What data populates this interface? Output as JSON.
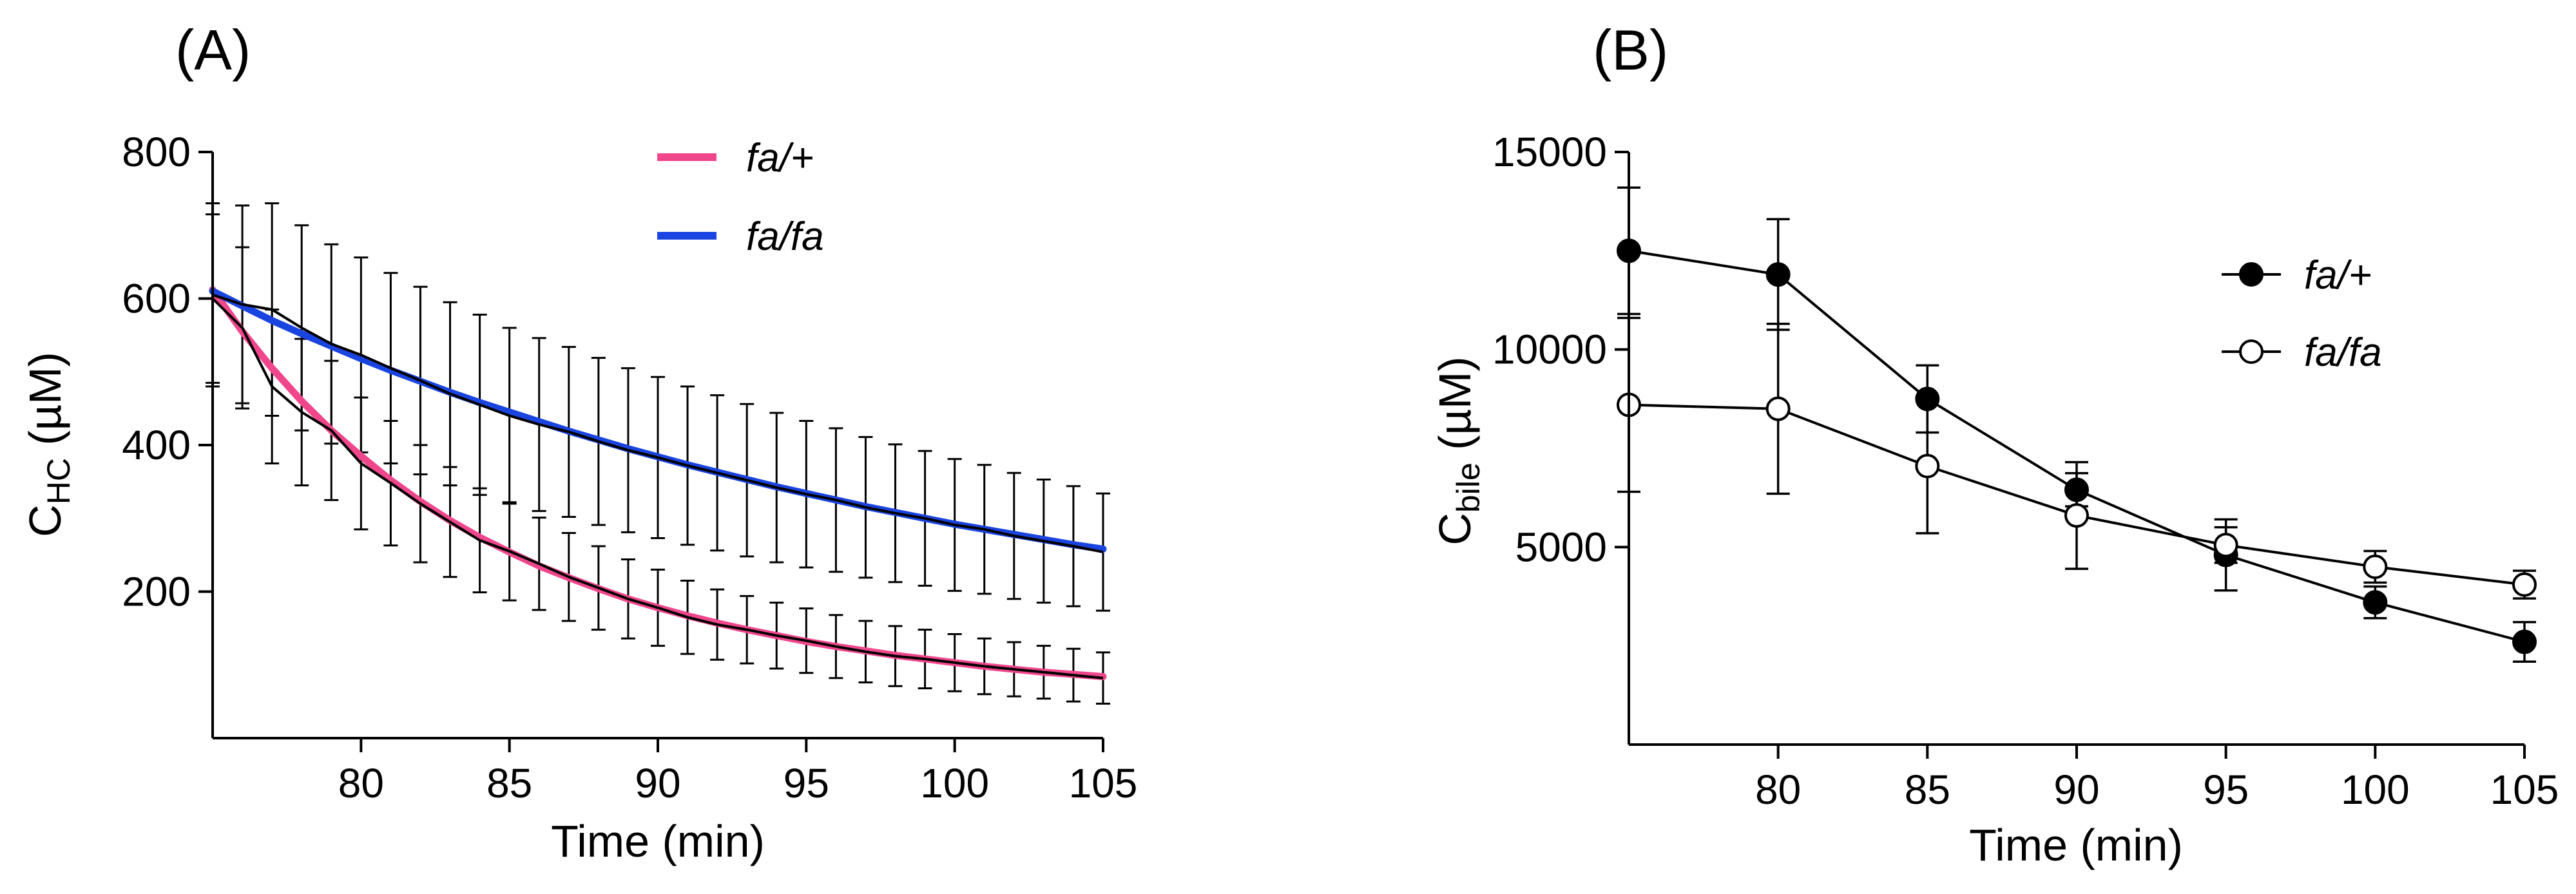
{
  "panels": [
    {
      "id": "A",
      "label": "(A)",
      "legend": [
        {
          "label": "fa/+",
          "color": "#f0468c"
        },
        {
          "label": "fa/fa",
          "color": "#1a44e0"
        }
      ]
    },
    {
      "id": "B",
      "label": "(B)",
      "legend": [
        {
          "label": "fa/+",
          "marker": "filled-circle"
        },
        {
          "label": "fa/fa",
          "marker": "open-circle"
        }
      ]
    }
  ],
  "chart_data": [
    {
      "type": "line",
      "panel": "A",
      "title": "",
      "xlabel": "Time (min)",
      "ylabel_main": "C",
      "ylabel_sub": "HC",
      "ylabel_unit": " (µM)",
      "xlim": [
        75,
        105
      ],
      "ylim": [
        0,
        800
      ],
      "xticks": [
        80,
        85,
        90,
        95,
        100,
        105
      ],
      "yticks": [
        200,
        400,
        600,
        800
      ],
      "x": [
        75,
        76,
        77,
        78,
        79,
        80,
        81,
        82,
        83,
        84,
        85,
        86,
        87,
        88,
        89,
        90,
        91,
        92,
        93,
        94,
        95,
        96,
        97,
        98,
        99,
        100,
        101,
        102,
        103,
        104,
        105
      ],
      "series": [
        {
          "name": "fa/+",
          "line_color": "#f0468c",
          "fit": [
            612,
            555,
            505,
            460,
            420,
            385,
            352,
            323,
            297,
            274,
            254,
            235,
            219,
            204,
            190,
            178,
            167,
            157,
            148,
            140,
            132,
            125,
            119,
            113,
            108,
            103,
            98,
            94,
            90,
            87,
            84
          ],
          "observed": [
            600,
            560,
            480,
            445,
            420,
            375,
            348,
            320,
            295,
            270,
            255,
            238,
            220,
            205,
            190,
            178,
            165,
            155,
            148,
            140,
            133,
            125,
            118,
            112,
            108,
            103,
            98,
            94,
            90,
            86,
            82
          ],
          "sd": [
            115,
            110,
            105,
            100,
            95,
            90,
            85,
            80,
            75,
            71,
            67,
            63,
            60,
            57,
            54,
            52,
            50,
            48,
            46,
            45,
            44,
            43,
            42,
            41,
            40,
            39,
            38,
            37,
            36,
            36,
            35
          ]
        },
        {
          "name": "fa/fa",
          "line_color": "#1a44e0",
          "fit": [
            610,
            590,
            570,
            552,
            535,
            518,
            502,
            487,
            472,
            458,
            445,
            432,
            419,
            407,
            395,
            384,
            373,
            363,
            353,
            343,
            334,
            325,
            316,
            308,
            300,
            292,
            285,
            278,
            271,
            264,
            258
          ],
          "observed": [
            605,
            592,
            585,
            560,
            538,
            523,
            505,
            488,
            470,
            455,
            440,
            428,
            418,
            405,
            393,
            383,
            372,
            362,
            352,
            342,
            333,
            325,
            315,
            307,
            300,
            291,
            285,
            276,
            269,
            262,
            254
          ],
          "sd": [
            125,
            135,
            145,
            140,
            136,
            133,
            130,
            128,
            125,
            123,
            120,
            118,
            116,
            114,
            112,
            110,
            108,
            106,
            104,
            102,
            100,
            98,
            96,
            94,
            92,
            90,
            88,
            86,
            84,
            82,
            80
          ]
        }
      ]
    },
    {
      "type": "line",
      "panel": "B",
      "title": "",
      "xlabel": "Time (min)",
      "ylabel_main": "C",
      "ylabel_sub": "bile",
      "ylabel_unit": " (µM)",
      "xlim": [
        75,
        105
      ],
      "ylim": [
        0,
        15000
      ],
      "xticks": [
        80,
        85,
        90,
        95,
        100,
        105
      ],
      "yticks": [
        5000,
        10000,
        15000
      ],
      "x": [
        75,
        80,
        85,
        90,
        95,
        100,
        105
      ],
      "series": [
        {
          "name": "fa/+",
          "marker": "filled",
          "values": [
            12500,
            11900,
            8750,
            6450,
            4800,
            3600,
            2600
          ],
          "sd": [
            1600,
            1400,
            850,
            420,
            900,
            400,
            500
          ]
        },
        {
          "name": "fa/fa",
          "marker": "open",
          "values": [
            8600,
            8500,
            7050,
            5800,
            5050,
            4500,
            4050
          ],
          "sd": [
            2200,
            2150,
            1700,
            1350,
            450,
            400,
            350
          ]
        }
      ]
    }
  ]
}
